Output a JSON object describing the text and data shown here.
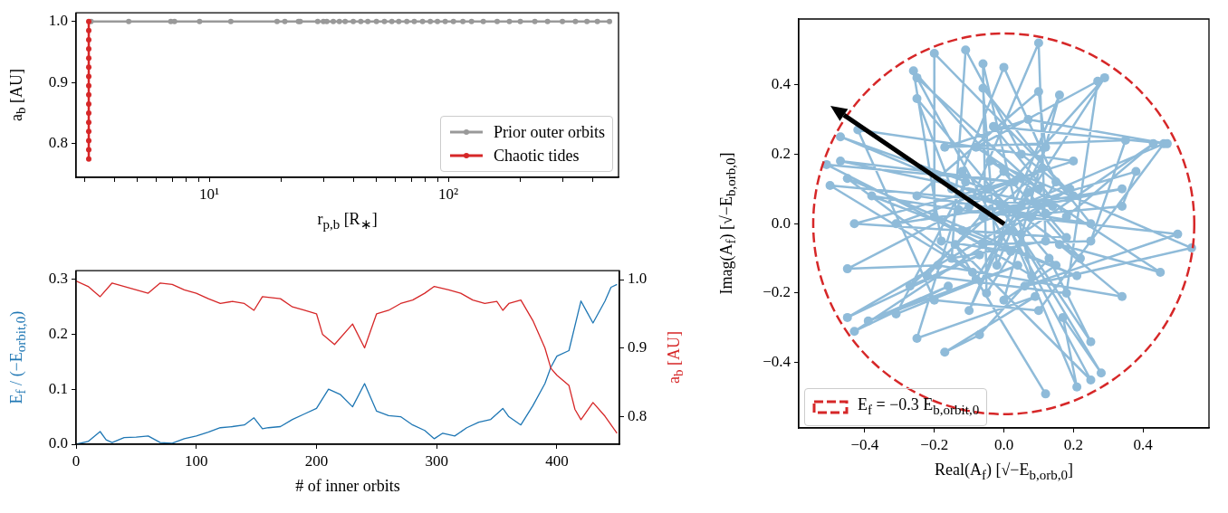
{
  "chart_data": [
    {
      "type": "line",
      "xlabel": "r$_{p,b}$ [R$_{∗}$]",
      "ylabel": "a$_{b}$ [AU]",
      "log": "x",
      "xlim": [
        2.77,
        515
      ],
      "ylim": [
        0.745,
        1.014
      ],
      "xticks": [
        {
          "value": 3,
          "label": null
        },
        {
          "value": 4,
          "label": null
        },
        {
          "value": 5,
          "label": null
        },
        {
          "value": 6,
          "label": null
        },
        {
          "value": 7,
          "label": null
        },
        {
          "value": 8,
          "label": null
        },
        {
          "value": 9,
          "label": null
        },
        {
          "value": 10,
          "label": "10¹"
        },
        {
          "value": 20,
          "label": null
        },
        {
          "value": 30,
          "label": null
        },
        {
          "value": 40,
          "label": null
        },
        {
          "value": 50,
          "label": null
        },
        {
          "value": 60,
          "label": null
        },
        {
          "value": 70,
          "label": null
        },
        {
          "value": 80,
          "label": null
        },
        {
          "value": 90,
          "label": null
        },
        {
          "value": 100,
          "label": "10²"
        },
        {
          "value": 200,
          "label": null
        },
        {
          "value": 300,
          "label": null
        },
        {
          "value": 400,
          "label": null
        }
      ],
      "yticks": [
        0.8,
        0.9,
        {
          "value": 1,
          "label": "1.0"
        }
      ],
      "marker": "circle",
      "legend": "bottom right",
      "series": [
        {
          "name": "Prior outer orbits",
          "color": "#999999",
          "x": [
            3.2,
            4.6,
            6.9,
            7.15,
            9.1,
            12.3,
            19.2,
            20.7,
            23.6,
            24,
            28.4,
            30,
            31,
            33,
            35,
            37,
            40,
            43,
            46,
            50,
            54,
            58,
            62,
            67,
            72,
            78,
            84,
            90,
            97,
            105,
            115,
            125,
            140,
            160,
            180,
            200,
            230,
            260,
            300,
            340,
            380,
            420,
            472
          ],
          "values": [
            1,
            1,
            1,
            1,
            1,
            1,
            1,
            1,
            1,
            1,
            1,
            1,
            1,
            1,
            1,
            1,
            1,
            1,
            1,
            1,
            1,
            1,
            1,
            1,
            1,
            1,
            1,
            1,
            1,
            1,
            1,
            1,
            1,
            1,
            1,
            1,
            1,
            1,
            1,
            1,
            1,
            1,
            1
          ]
        },
        {
          "name": "Chaotic tides",
          "color": "#d62728",
          "x": [
            3.13,
            3.13,
            3.13,
            3.13,
            3.13,
            3.13,
            3.13,
            3.13,
            3.13,
            3.13,
            3.13,
            3.13,
            3.13,
            3.13,
            3.13,
            3.13
          ],
          "values": [
            1.0,
            0.985,
            0.97,
            0.955,
            0.94,
            0.925,
            0.91,
            0.895,
            0.88,
            0.865,
            0.85,
            0.835,
            0.82,
            0.805,
            0.79,
            0.775
          ]
        }
      ]
    },
    {
      "type": "line",
      "xlabel": "# of inner orbits",
      "ylabel": "E$_{f}$ / (−E$_{orbit,0}$)",
      "y2label": "a$_{b}$ [AU]",
      "xlim": [
        0,
        452
      ],
      "ylim": [
        0,
        0.315
      ],
      "y2lim": [
        0.759,
        1.013
      ],
      "xticks": [
        0,
        100,
        200,
        300,
        400
      ],
      "yticks": [
        {
          "value": 0,
          "label": "0.0"
        },
        0.1,
        0.2,
        0.3
      ],
      "y2ticks": [
        0.8,
        0.9,
        {
          "value": 1,
          "label": "1.0"
        }
      ],
      "series": [
        {
          "color": "#1f77b4",
          "x": [
            0,
            10,
            20,
            25,
            30,
            40,
            50,
            60,
            70,
            80,
            90,
            100,
            110,
            120,
            130,
            140,
            148,
            155,
            160,
            170,
            180,
            190,
            200,
            210,
            220,
            230,
            240,
            250,
            260,
            270,
            280,
            290,
            298,
            305,
            315,
            325,
            335,
            345,
            355,
            360,
            370,
            380,
            390,
            395,
            400,
            410,
            420,
            425,
            430,
            440,
            445,
            450
          ],
          "values": [
            0.0,
            0.005,
            0.023,
            0.008,
            0.003,
            0.012,
            0.013,
            0.015,
            0.003,
            0.002,
            0.01,
            0.015,
            0.022,
            0.03,
            0.032,
            0.035,
            0.048,
            0.028,
            0.03,
            0.032,
            0.045,
            0.055,
            0.065,
            0.1,
            0.09,
            0.068,
            0.11,
            0.06,
            0.052,
            0.05,
            0.035,
            0.025,
            0.01,
            0.02,
            0.015,
            0.03,
            0.04,
            0.045,
            0.065,
            0.05,
            0.035,
            0.07,
            0.11,
            0.14,
            0.16,
            0.17,
            0.26,
            0.24,
            0.22,
            0.26,
            0.285,
            0.29
          ]
        },
        {
          "color": "#d62728",
          "axis": "y2",
          "x": [
            0,
            10,
            20,
            30,
            40,
            50,
            60,
            70,
            80,
            90,
            100,
            110,
            120,
            130,
            140,
            148,
            155,
            170,
            180,
            190,
            200,
            205,
            215,
            230,
            240,
            250,
            260,
            270,
            280,
            290,
            298,
            310,
            320,
            330,
            340,
            350,
            355,
            360,
            370,
            380,
            390,
            395,
            400,
            410,
            415,
            420,
            430,
            440,
            450
          ],
          "values": [
            0.998,
            0.99,
            0.975,
            0.995,
            0.99,
            0.985,
            0.98,
            0.995,
            0.993,
            0.985,
            0.98,
            0.972,
            0.965,
            0.968,
            0.965,
            0.955,
            0.975,
            0.972,
            0.96,
            0.955,
            0.95,
            0.92,
            0.905,
            0.935,
            0.9,
            0.95,
            0.955,
            0.965,
            0.97,
            0.98,
            0.99,
            0.985,
            0.98,
            0.97,
            0.965,
            0.968,
            0.955,
            0.965,
            0.97,
            0.94,
            0.9,
            0.87,
            0.86,
            0.845,
            0.81,
            0.795,
            0.82,
            0.8,
            0.775
          ]
        }
      ]
    },
    {
      "type": "line",
      "xlabel": "Real(A$_{f}$) [√−E$_{b,orb,0}$]",
      "ylabel": "Imag(A$_{f}$) [√−E$_{b,orb,0}$]",
      "xlim": [
        -0.59,
        0.59
      ],
      "ylim": [
        -0.588,
        0.589
      ],
      "xticks": [
        {
          "value": -0.4,
          "label": "−0.4"
        },
        {
          "value": -0.2,
          "label": "−0.2"
        },
        {
          "value": 0,
          "label": "0.0"
        },
        0.2,
        0.4
      ],
      "yticks": [
        {
          "value": -0.4,
          "label": "−0.4"
        },
        {
          "value": -0.2,
          "label": "−0.2"
        },
        {
          "value": 0,
          "label": "0.0"
        },
        0.2,
        0.4
      ],
      "marker": "circle",
      "annotations": [
        "E$_{f}$ = −0.3 E$_{b,orbit,0}$"
      ],
      "series": [
        {
          "color": "#8fbbd9",
          "x": [
            0.0,
            -0.1,
            0.1,
            0.12,
            -0.15,
            -0.11,
            0.05,
            0.2,
            -0.2,
            -0.2,
            0.08,
            -0.06,
            -0.05,
            0.15,
            0.0,
            -0.12,
            0.22,
            -0.26,
            -0.18,
            0.02,
            -0.25,
            0.1,
            -0.08,
            0.27,
            0.18,
            -0.22,
            0.29,
            0.05,
            -0.02,
            -0.06,
            0.25,
            -0.25,
            0.1,
            0.12,
            -0.1,
            0.16,
            0.0,
            0.15,
            -0.25,
            -0.15,
            0.08,
            -0.47,
            -0.05,
            0.2,
            -0.42,
            -0.2,
            0.1,
            0.46,
            -0.12,
            0.05,
            0.43,
            0.18,
            -0.03,
            0.47,
            0.07,
            -0.17,
            0.35,
            0.25,
            -0.06,
            -0.51,
            0.03,
            -0.47,
            0.14,
            -0.5,
            -0.09,
            -0.45,
            0.21,
            -0.38,
            -0.13,
            0.5,
            0.06,
            0.54,
            -0.04,
            0.45,
            0.16,
            0.34,
            -0.19,
            -0.45,
            0.11,
            -0.27,
            -0.07,
            -0.45,
            0.19,
            -0.43,
            -0.16,
            -0.39,
            0.04,
            -0.31,
            -0.11,
            -0.25,
            0.09,
            -0.17,
            -0.07,
            0.13,
            0.25,
            -0.01,
            0.28,
            0.17,
            0.21,
            0.02,
            0.25,
            -0.14,
            0.12,
            -0.08,
            0.07,
            0.18,
            -0.43,
            0.05,
            -0.31,
            0.34,
            -0.06,
            0.38,
            0.34,
            0.12
          ],
          "values": [
            0.15,
            0.05,
            0.52,
            -0.05,
            -0.1,
            0.5,
            0.2,
            0.08,
            0.49,
            0.02,
            -0.15,
            0.46,
            -0.2,
            0.12,
            0.45,
            0.15,
            -0.1,
            0.44,
            -0.05,
            -0.08,
            0.42,
            0.1,
            0.22,
            0.41,
            -0.2,
            -0.15,
            0.42,
            0.05,
            -0.12,
            0.39,
            0.0,
            0.08,
            0.38,
            0.22,
            -0.25,
            0.37,
            -0.22,
            -0.12,
            0.36,
            0.1,
            0.02,
            0.25,
            0.1,
            0.18,
            0.27,
            -0.22,
            -0.25,
            0.23,
            -0.02,
            -0.03,
            0.23,
            0.02,
            0.28,
            0.23,
            0.3,
            0.22,
            0.24,
            -0.05,
            -0.06,
            0.17,
            0.12,
            0.18,
            0.05,
            0.11,
            -0.14,
            0.13,
            -0.15,
            0.08,
            0.04,
            -0.03,
            -0.18,
            -0.07,
            0.18,
            -0.14,
            -0.06,
            -0.21,
            -0.12,
            -0.13,
            0.16,
            -0.18,
            -0.09,
            -0.27,
            0.1,
            -0.31,
            -0.18,
            -0.28,
            -0.12,
            -0.26,
            0.12,
            -0.33,
            -0.21,
            -0.37,
            -0.32,
            -0.1,
            -0.34,
            0.05,
            -0.43,
            -0.27,
            -0.47,
            -0.02,
            -0.45,
            -0.06,
            -0.49,
            -0.16,
            0.09,
            -0.04,
            0.0,
            0.13,
            0.0,
            0.1,
            0.02,
            0.15,
            0.05,
            0.03
          ]
        }
      ]
    }
  ]
}
